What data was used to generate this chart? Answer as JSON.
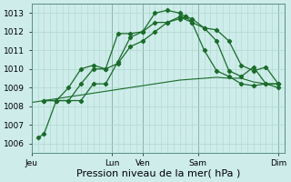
{
  "xlabel": "Pression niveau de la mer( hPa )",
  "ylim": [
    1005.5,
    1013.5
  ],
  "yticks": [
    1006,
    1007,
    1008,
    1009,
    1010,
    1011,
    1012,
    1013
  ],
  "bg_color": "#cdecea",
  "grid_color": "#b0d8cc",
  "line_color": "#1a6b2a",
  "day_labels": [
    "Jeu",
    "Lun",
    "Ven",
    "Sam",
    "Dim"
  ],
  "day_positions": [
    0,
    13,
    18,
    27,
    40
  ],
  "vline_positions": [
    13,
    18,
    27,
    40
  ],
  "series1_x": [
    1,
    2,
    4,
    6,
    8,
    10,
    12,
    14,
    16,
    18,
    20,
    22,
    24,
    25,
    26,
    28,
    30,
    32,
    34,
    36,
    38,
    40
  ],
  "series1_y": [
    1006.3,
    1006.5,
    1008.3,
    1008.3,
    1008.3,
    1009.2,
    1009.2,
    1010.4,
    1011.7,
    1012.0,
    1012.5,
    1012.5,
    1012.7,
    1012.8,
    1012.7,
    1012.2,
    1012.1,
    1011.5,
    1010.2,
    1009.9,
    1010.1,
    1009.2
  ],
  "series2_x": [
    2,
    4,
    6,
    8,
    10,
    12,
    14,
    16,
    18,
    20,
    22,
    24,
    26,
    28,
    30,
    32,
    34,
    36,
    38,
    40
  ],
  "series2_y": [
    1008.3,
    1008.3,
    1008.3,
    1009.2,
    1010.0,
    1010.0,
    1010.3,
    1011.2,
    1011.5,
    1012.0,
    1012.5,
    1012.8,
    1012.5,
    1012.2,
    1011.5,
    1009.9,
    1009.6,
    1010.1,
    1009.2,
    1009.2
  ],
  "series3_x": [
    2,
    4,
    6,
    8,
    10,
    12,
    14,
    16,
    18,
    20,
    22,
    24,
    25,
    26,
    28,
    30,
    32,
    34,
    36,
    38,
    40
  ],
  "series3_y": [
    1008.3,
    1008.3,
    1009.0,
    1010.0,
    1010.2,
    1010.0,
    1011.9,
    1011.9,
    1012.0,
    1013.0,
    1013.15,
    1013.0,
    1012.8,
    1012.5,
    1011.0,
    1009.9,
    1009.6,
    1009.2,
    1009.1,
    1009.2,
    1009.0
  ],
  "series4_x": [
    0,
    2,
    4,
    6,
    8,
    10,
    12,
    14,
    16,
    18,
    20,
    22,
    24,
    26,
    28,
    30,
    32,
    34,
    36,
    38,
    40
  ],
  "series4_y": [
    1008.2,
    1008.3,
    1008.4,
    1008.5,
    1008.6,
    1008.7,
    1008.8,
    1008.9,
    1009.0,
    1009.1,
    1009.2,
    1009.3,
    1009.4,
    1009.45,
    1009.5,
    1009.55,
    1009.5,
    1009.5,
    1009.3,
    1009.2,
    1009.2
  ],
  "xlabel_fontsize": 8,
  "tick_fontsize": 6.5,
  "figsize": [
    3.2,
    2.0
  ],
  "dpi": 100
}
